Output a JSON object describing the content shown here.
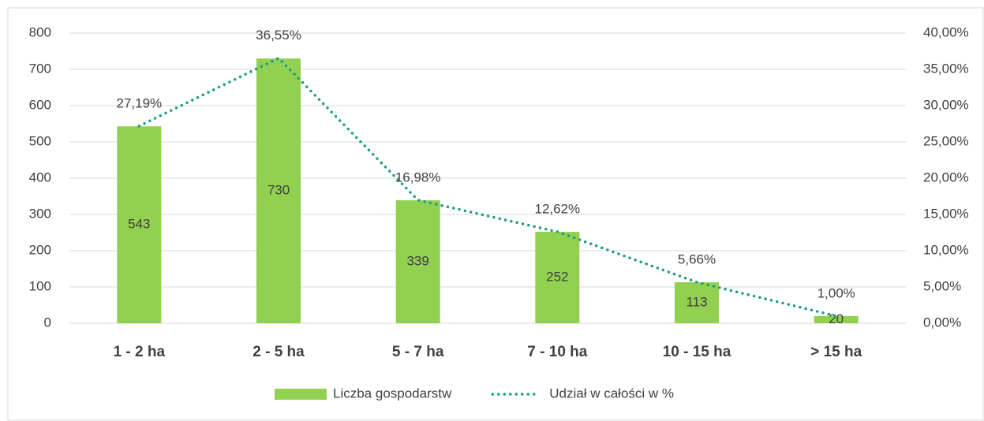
{
  "chart_data": {
    "type": "bar",
    "categories": [
      "1 - 2 ha",
      "2 - 5 ha",
      "5 - 7 ha",
      "7 - 10 ha",
      "10 - 15 ha",
      "> 15 ha"
    ],
    "series": [
      {
        "name": "Liczba gospodarstw",
        "type": "bar",
        "color": "#92d050",
        "values": [
          543,
          730,
          339,
          252,
          113,
          20
        ]
      },
      {
        "name": "Udział w całości w %",
        "type": "line",
        "axis": "y2",
        "color": "#1a9c8a",
        "values": [
          27.19,
          36.55,
          16.98,
          12.62,
          5.66,
          1.0
        ],
        "value_labels": [
          "27,19%",
          "36,55%",
          "16,98%",
          "12,62%",
          "5,66%",
          "1,00%"
        ]
      }
    ],
    "ylim": [
      0,
      800
    ],
    "yticks": [
      0,
      100,
      200,
      300,
      400,
      500,
      600,
      700,
      800
    ],
    "y2lim": [
      0,
      40
    ],
    "y2ticks": [
      {
        "value": 0,
        "label": "0,00%"
      },
      {
        "value": 5,
        "label": "5,00%"
      },
      {
        "value": 10,
        "label": "10,00%"
      },
      {
        "value": 15,
        "label": "15,00%"
      },
      {
        "value": 20,
        "label": "20,00%"
      },
      {
        "value": 25,
        "label": "25,00%"
      },
      {
        "value": 30,
        "label": "30,00%"
      },
      {
        "value": 35,
        "label": "35,00%"
      },
      {
        "value": 40,
        "label": "40,00%"
      }
    ],
    "grid": true,
    "legend": "bottom"
  }
}
